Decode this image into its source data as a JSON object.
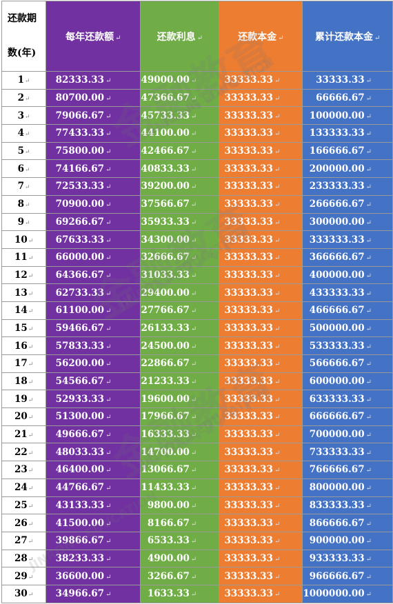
{
  "header": {
    "period_line1": "还款期",
    "period_line2": "数(年)",
    "annual": "每年还款额",
    "interest": "还款利息",
    "principal": "还款本金",
    "cumulative": "累计还款本金",
    "paragraph_mark": "↵"
  },
  "colors": {
    "annual": "#7131a0",
    "interest": "#70ad47",
    "principal": "#ed7d31",
    "cumulative": "#4472c4"
  },
  "rows": [
    {
      "period": "1",
      "annual": "82333.33",
      "interest": "49000.00",
      "principal": "33333.33",
      "cumulative": "33333.33"
    },
    {
      "period": "2",
      "annual": "80700.00",
      "interest": "47366.67",
      "principal": "33333.33",
      "cumulative": "66666.67"
    },
    {
      "period": "3",
      "annual": "79066.67",
      "interest": "45733.33",
      "principal": "33333.33",
      "cumulative": "100000.00"
    },
    {
      "period": "4",
      "annual": "77433.33",
      "interest": "44100.00",
      "principal": "33333.33",
      "cumulative": "133333.33"
    },
    {
      "period": "5",
      "annual": "75800.00",
      "interest": "42466.67",
      "principal": "33333.33",
      "cumulative": "166666.67"
    },
    {
      "period": "6",
      "annual": "74166.67",
      "interest": "40833.33",
      "principal": "33333.33",
      "cumulative": "200000.00"
    },
    {
      "period": "7",
      "annual": "72533.33",
      "interest": "39200.00",
      "principal": "33333.33",
      "cumulative": "233333.33"
    },
    {
      "period": "8",
      "annual": "70900.00",
      "interest": "37566.67",
      "principal": "33333.33",
      "cumulative": "266666.67"
    },
    {
      "period": "9",
      "annual": "69266.67",
      "interest": "35933.33",
      "principal": "33333.33",
      "cumulative": "300000.00"
    },
    {
      "period": "10",
      "annual": "67633.33",
      "interest": "34300.00",
      "principal": "33333.33",
      "cumulative": "333333.33"
    },
    {
      "period": "11",
      "annual": "66000.00",
      "interest": "32666.67",
      "principal": "33333.33",
      "cumulative": "366666.67"
    },
    {
      "period": "12",
      "annual": "64366.67",
      "interest": "31033.33",
      "principal": "33333.33",
      "cumulative": "400000.00"
    },
    {
      "period": "13",
      "annual": "62733.33",
      "interest": "29400.00",
      "principal": "33333.33",
      "cumulative": "433333.33"
    },
    {
      "period": "14",
      "annual": "61100.00",
      "interest": "27766.67",
      "principal": "33333.33",
      "cumulative": "466666.67"
    },
    {
      "period": "15",
      "annual": "59466.67",
      "interest": "26133.33",
      "principal": "33333.33",
      "cumulative": "500000.00"
    },
    {
      "period": "16",
      "annual": "57833.33",
      "interest": "24500.00",
      "principal": "33333.33",
      "cumulative": "533333.33"
    },
    {
      "period": "17",
      "annual": "56200.00",
      "interest": "22866.67",
      "principal": "33333.33",
      "cumulative": "566666.67"
    },
    {
      "period": "18",
      "annual": "54566.67",
      "interest": "21233.33",
      "principal": "33333.33",
      "cumulative": "600000.00"
    },
    {
      "period": "19",
      "annual": "52933.33",
      "interest": "19600.00",
      "principal": "33333.33",
      "cumulative": "633333.33"
    },
    {
      "period": "20",
      "annual": "51300.00",
      "interest": "17966.67",
      "principal": "33333.33",
      "cumulative": "666666.67"
    },
    {
      "period": "21",
      "annual": "49666.67",
      "interest": "16333.33",
      "principal": "33333.33",
      "cumulative": "700000.00"
    },
    {
      "period": "22",
      "annual": "48033.33",
      "interest": "14700.00",
      "principal": "33333.33",
      "cumulative": "733333.33"
    },
    {
      "period": "23",
      "annual": "46400.00",
      "interest": "13066.67",
      "principal": "33333.33",
      "cumulative": "766666.67"
    },
    {
      "period": "24",
      "annual": "44766.67",
      "interest": "11433.33",
      "principal": "33333.33",
      "cumulative": "800000.00"
    },
    {
      "period": "25",
      "annual": "43133.33",
      "interest": "9800.00",
      "principal": "33333.33",
      "cumulative": "833333.33"
    },
    {
      "period": "26",
      "annual": "41500.00",
      "interest": "8166.67",
      "principal": "33333.33",
      "cumulative": "866666.67"
    },
    {
      "period": "27",
      "annual": "39866.67",
      "interest": "6533.33",
      "principal": "33333.33",
      "cumulative": "900000.00"
    },
    {
      "period": "28",
      "annual": "38233.33",
      "interest": "4900.00",
      "principal": "33333.33",
      "cumulative": "933333.33"
    },
    {
      "period": "29",
      "annual": "36600.00",
      "interest": "3266.67",
      "principal": "33333.33",
      "cumulative": "966666.67"
    },
    {
      "period": "30",
      "annual": "34966.67",
      "interest": "1633.33",
      "principal": "33333.33",
      "cumulative": "1000000.00"
    }
  ],
  "watermark": {
    "brand": "金融教育",
    "latin": "JINRONG EDUCATION"
  }
}
